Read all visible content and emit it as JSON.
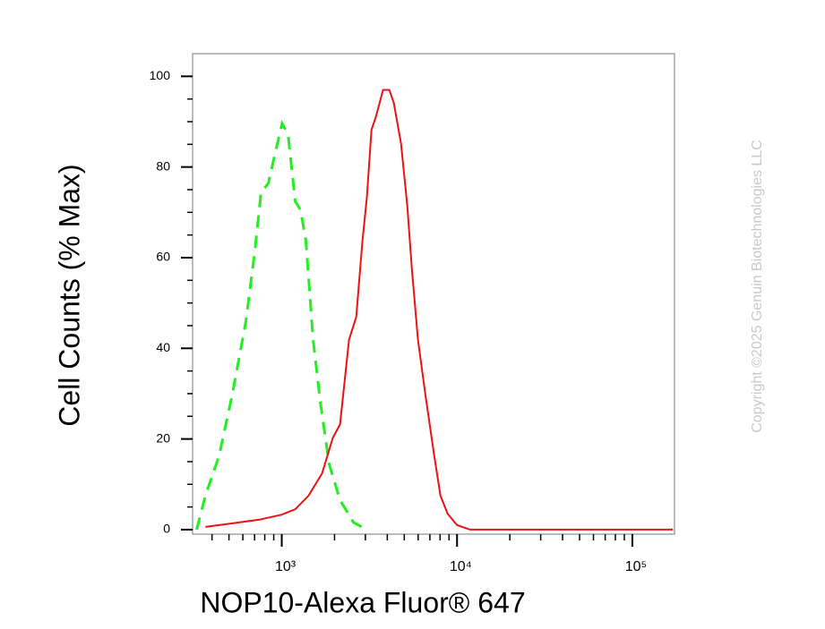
{
  "chart_data": {
    "type": "line",
    "x_label": "NOP10-Alexa Fluor® 647",
    "y_label": "Cell Counts (% Max)",
    "copyright": "Copyright ©2025 Genuin Biotechnologies LLC",
    "x_scale": "log",
    "xlim": [
      310,
      174000
    ],
    "ylim": [
      -1,
      105
    ],
    "xticks": [
      {
        "value": 1000,
        "label": "10³"
      },
      {
        "value": 10000,
        "label": "10⁴"
      },
      {
        "value": 100000,
        "label": "10⁵"
      }
    ],
    "yticks": [
      0,
      20,
      40,
      60,
      80,
      100
    ],
    "series": [
      {
        "color": "#22ee22",
        "dashed": true,
        "x": [
          327,
          367,
          439,
          524,
          624,
          703,
          762,
          838,
          920,
          1005,
          1086,
          1194,
          1280,
          1374,
          1510,
          1660,
          1866,
          2150,
          2565,
          3060
        ],
        "values": [
          0,
          7.5,
          16.3,
          30.1,
          45.9,
          61.6,
          74.4,
          76.4,
          83.3,
          89.6,
          87.2,
          72.4,
          70.5,
          63.6,
          41.9,
          28.1,
          14.4,
          6.5,
          1.6,
          0
        ]
      },
      {
        "color": "#ee1111",
        "dashed": false,
        "x": [
          367,
          524,
          745,
          1000,
          1194,
          1423,
          1698,
          1958,
          2150,
          2420,
          2660,
          2885,
          3060,
          3250,
          3445,
          3785,
          4110,
          4360,
          4790,
          5200,
          5520,
          5985,
          6580,
          7410,
          8040,
          8840,
          10000,
          11860,
          14150,
          170000
        ],
        "values": [
          0.6,
          1.4,
          2.2,
          3.3,
          4.5,
          7.5,
          12.4,
          20.3,
          23.2,
          41.9,
          46.9,
          63.6,
          73.4,
          88.2,
          91.1,
          97.0,
          97.0,
          94.1,
          85.2,
          71.5,
          57.7,
          41.9,
          30.1,
          16.3,
          7.5,
          3.5,
          1.0,
          0,
          0,
          0
        ]
      }
    ]
  }
}
